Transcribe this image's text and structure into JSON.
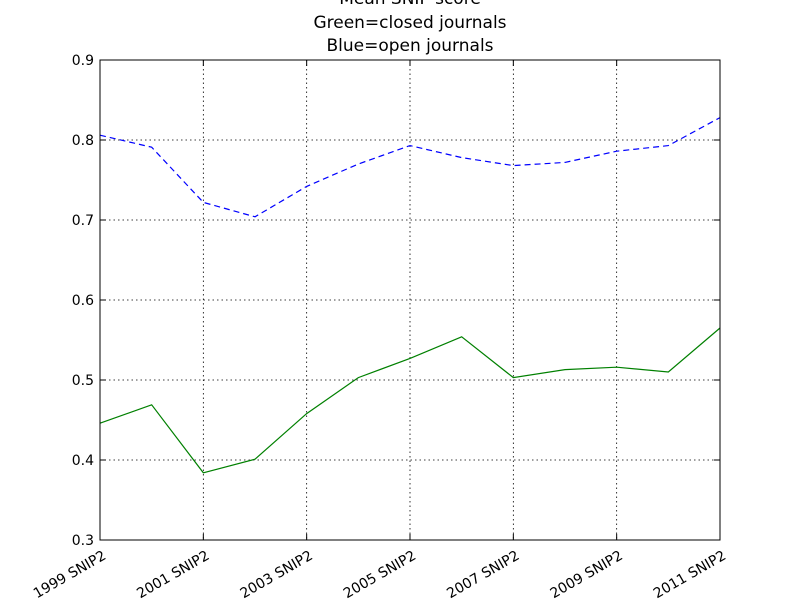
{
  "chart_data": {
    "type": "line",
    "title": [
      "Mean SNIP score",
      "Green=closed journals",
      "Blue=open journals"
    ],
    "xlabel": "",
    "ylabel": "",
    "x": [
      1999,
      2000,
      2001,
      2002,
      2003,
      2004,
      2005,
      2006,
      2007,
      2008,
      2009,
      2010,
      2011
    ],
    "x_ticks": [
      {
        "x": 1999,
        "label": "1999 SNIP2"
      },
      {
        "x": 2001,
        "label": "2001 SNIP2"
      },
      {
        "x": 2003,
        "label": "2003 SNIP2"
      },
      {
        "x": 2005,
        "label": "2005 SNIP2"
      },
      {
        "x": 2007,
        "label": "2007 SNIP2"
      },
      {
        "x": 2009,
        "label": "2009 SNIP2"
      },
      {
        "x": 2011,
        "label": "2011 SNIP2"
      }
    ],
    "y_ticks": [
      0.3,
      0.4,
      0.5,
      0.6,
      0.7,
      0.8,
      0.9
    ],
    "xlim": [
      1999,
      2011
    ],
    "ylim": [
      0.3,
      0.9
    ],
    "grid": true,
    "series": [
      {
        "color": "#0000ff",
        "linestyle": "dashed",
        "values": [
          0.806,
          0.791,
          0.722,
          0.704,
          0.742,
          0.77,
          0.793,
          0.778,
          0.768,
          0.772,
          0.786,
          0.793,
          0.828
        ]
      },
      {
        "color": "#008000",
        "linestyle": "solid",
        "values": [
          0.446,
          0.469,
          0.384,
          0.401,
          0.458,
          0.503,
          0.527,
          0.554,
          0.503,
          0.513,
          0.516,
          0.51,
          0.565
        ]
      }
    ]
  }
}
